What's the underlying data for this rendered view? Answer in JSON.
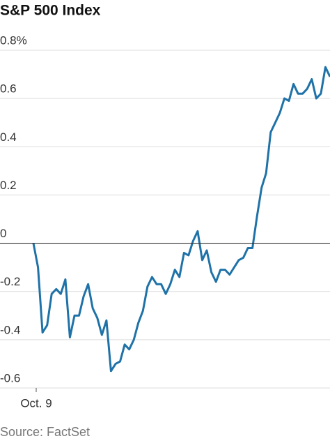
{
  "chart_data": {
    "type": "line",
    "title": "S&P 500 Index",
    "source": "Source: FactSet",
    "categories": [
      "Oct. 9",
      null,
      null,
      null,
      null,
      null,
      null,
      null,
      null,
      null,
      null,
      null,
      null,
      null,
      null,
      null,
      null,
      null,
      null,
      null,
      null,
      null,
      null,
      null,
      null,
      null,
      null,
      null,
      null,
      null,
      null,
      null,
      null,
      null,
      null,
      null,
      null,
      null,
      null,
      null,
      null,
      null,
      null,
      null,
      null,
      null,
      null,
      null,
      null,
      null,
      null,
      null,
      null,
      null,
      null,
      null,
      null,
      null,
      null,
      null,
      null,
      null,
      null,
      null,
      null,
      null
    ],
    "values": [
      0,
      -0.1,
      -0.37,
      -0.34,
      -0.21,
      -0.19,
      -0.21,
      -0.15,
      -0.39,
      -0.3,
      -0.3,
      -0.22,
      -0.17,
      -0.27,
      -0.31,
      -0.38,
      -0.32,
      -0.53,
      -0.5,
      -0.49,
      -0.42,
      -0.44,
      -0.4,
      -0.33,
      -0.28,
      -0.18,
      -0.14,
      -0.17,
      -0.17,
      -0.21,
      -0.17,
      -0.11,
      -0.14,
      -0.04,
      -0.05,
      0.01,
      0.05,
      -0.07,
      -0.03,
      -0.12,
      -0.16,
      -0.11,
      -0.11,
      -0.13,
      -0.1,
      -0.07,
      -0.06,
      -0.02,
      -0.02,
      0.11,
      0.23,
      0.29,
      0.46,
      0.5,
      0.54,
      0.6,
      0.59,
      0.66,
      0.62,
      0.62,
      0.64,
      0.68,
      0.6,
      0.62,
      0.73,
      0.69
    ],
    "color": "#1f72a8",
    "ylim": [
      -0.6,
      0.8
    ],
    "yticks": [
      {
        "value": 0.8,
        "label": "0.8%"
      },
      0.6,
      0.4,
      0.2,
      0,
      -0.2,
      -0.4,
      -0.6
    ],
    "grid": true
  }
}
